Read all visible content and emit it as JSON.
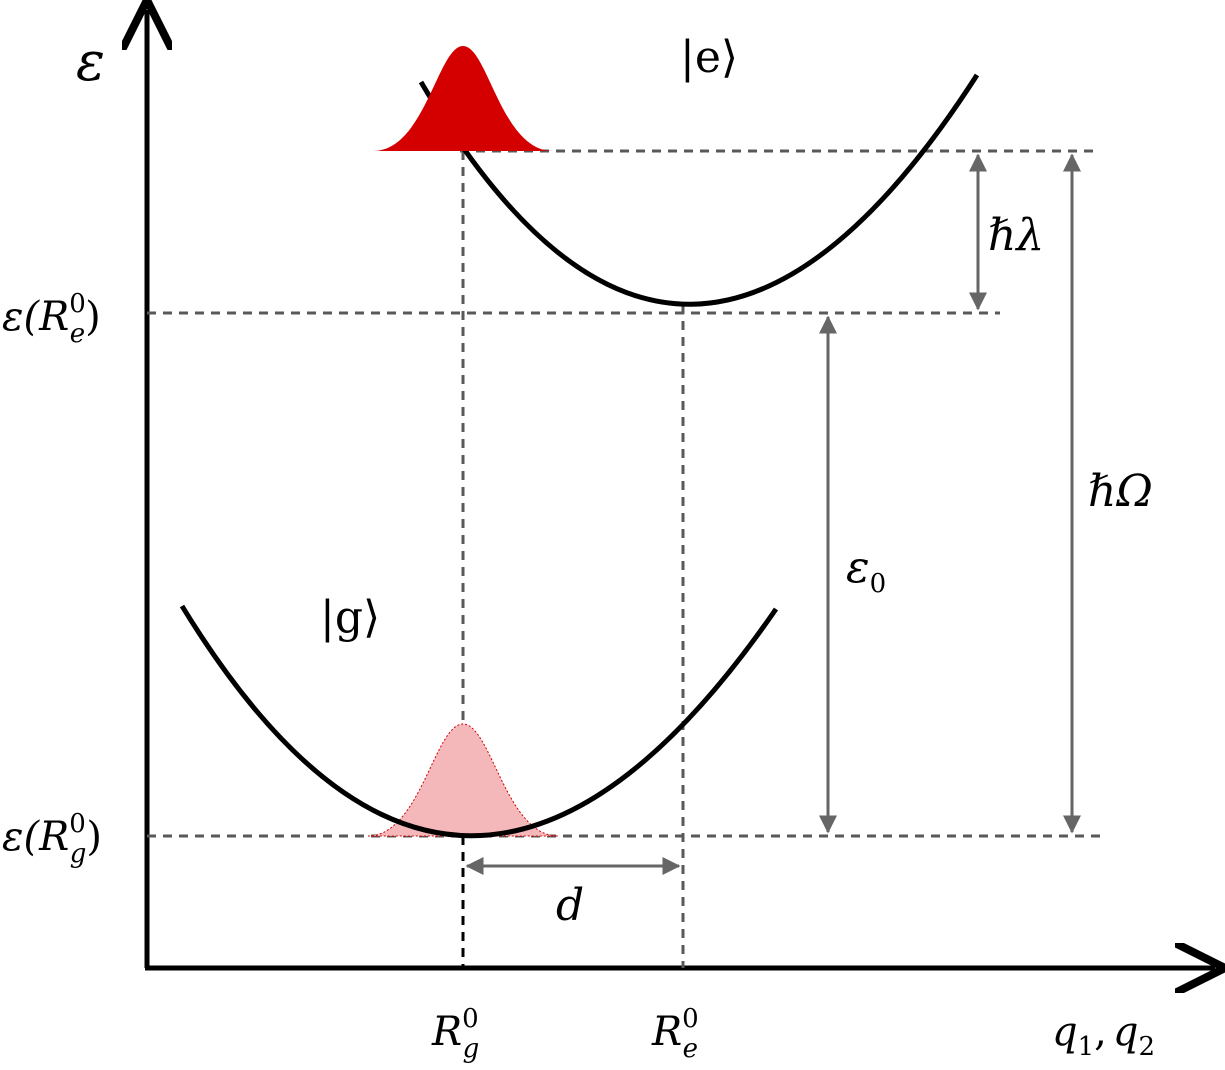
{
  "labels": {
    "y_axis": "ε",
    "x_axis_q1": "q",
    "x_axis_q1_sub": "1",
    "x_axis_sep": ",",
    "x_axis_q2": "q",
    "x_axis_q2_sub": "2",
    "excited_state": "|e⟩",
    "ground_state": "|g⟩",
    "eps_Re_pre": "ε(",
    "eps_Re_R": "R",
    "eps_Re_sup": "0",
    "eps_Re_sub": "e",
    "eps_Re_post": ")",
    "eps_Rg_pre": "ε(",
    "eps_Rg_R": "R",
    "eps_Rg_sup": "0",
    "eps_Rg_sub": "g",
    "eps_Rg_post": ")",
    "Rg_R": "R",
    "Rg_sup": "0",
    "Rg_sub": "g",
    "Re_R": "R",
    "Re_sup": "0",
    "Re_sub": "e",
    "hbar_lambda": "ℏλ",
    "hbar_Omega": "ℏΩ",
    "eps0": "ε",
    "eps0_sub": "0",
    "d": "d"
  },
  "colors": {
    "axis": "#000000",
    "curve": "#000000",
    "dashed": "#595959",
    "arrow": "#666666",
    "wavepacket_excited": "#d40000",
    "wavepacket_ground_fill": "#f4b8bb",
    "wavepacket_ground_stroke": "#d40000"
  }
}
